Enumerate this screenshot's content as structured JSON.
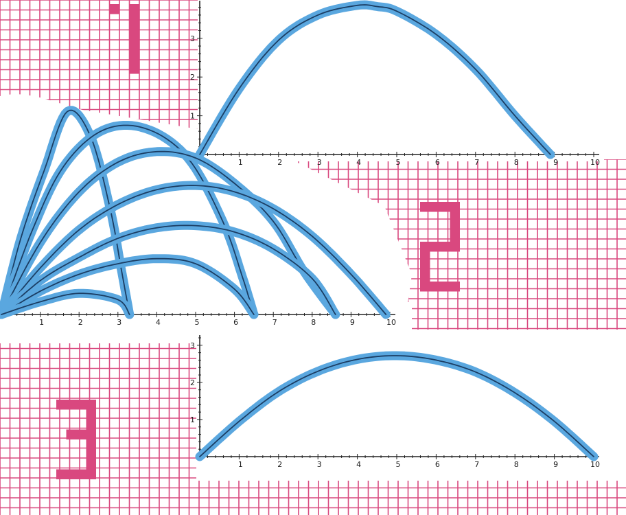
{
  "colors": {
    "grid": "#d9487f",
    "grid_light": "#ea6f9b",
    "panel_bg": "#ffffff",
    "curve_outline": "#5aa7df",
    "curve_core": "#1b3d63",
    "axis": "#222222"
  },
  "chart_data": [
    {
      "type": "line",
      "x_ticks": [
        "1",
        "2",
        "3",
        "4",
        "5",
        "6",
        "7",
        "8",
        "9",
        "10"
      ],
      "y_ticks": [
        "1",
        "2",
        "3"
      ],
      "xlim": [
        0,
        10
      ],
      "ylim": [
        0,
        3.9
      ],
      "series": [
        {
          "x": [
            0,
            1,
            2,
            3,
            4,
            4.5,
            5,
            6,
            7,
            8,
            8.9
          ],
          "y": [
            0,
            1.7,
            2.95,
            3.6,
            3.85,
            3.82,
            3.7,
            3.1,
            2.2,
            1.0,
            0
          ]
        }
      ]
    },
    {
      "type": "line",
      "x_ticks": [
        "1",
        "2",
        "3",
        "4",
        "5",
        "6",
        "7",
        "8",
        "9",
        "10"
      ],
      "y_ticks": [
        "1",
        "2",
        "3"
      ],
      "xlim": [
        0,
        10
      ],
      "ylim": [
        0,
        3.2
      ],
      "series": [
        {
          "x": [
            0,
            1,
            2,
            3,
            4,
            5,
            6,
            7,
            8,
            9,
            10
          ],
          "y": [
            0,
            0.95,
            1.75,
            2.3,
            2.62,
            2.72,
            2.6,
            2.28,
            1.72,
            0.95,
            0
          ]
        }
      ]
    },
    {
      "type": "line",
      "x_ticks": [
        "1",
        "2",
        "3",
        "4",
        "5",
        "6",
        "7",
        "8",
        "9",
        "10"
      ],
      "xlim": [
        0,
        10
      ],
      "ylim": [
        0,
        5
      ],
      "series": [
        {
          "x": [
            0,
            0.5,
            1.1,
            1.7,
            2.3,
            2.8,
            3.1,
            3.3
          ],
          "y": [
            0,
            1.8,
            3.4,
            4.8,
            4.2,
            2.5,
            1.0,
            0
          ]
        },
        {
          "x": [
            0,
            0.8,
            1.6,
            2.6,
            3.7,
            4.8,
            5.7,
            6.2,
            6.5
          ],
          "y": [
            0,
            2.0,
            3.5,
            4.35,
            4.4,
            3.7,
            2.2,
            0.9,
            0
          ]
        },
        {
          "x": [
            0,
            1,
            2,
            3,
            4,
            5,
            6,
            7,
            7.8,
            8.6
          ],
          "y": [
            0,
            1.7,
            2.9,
            3.6,
            3.85,
            3.7,
            3.1,
            2.2,
            1.0,
            0
          ]
        },
        {
          "x": [
            0,
            1,
            2,
            3,
            4,
            5,
            6,
            7,
            8,
            9,
            9.9
          ],
          "y": [
            0,
            1.1,
            2.0,
            2.6,
            2.95,
            3.05,
            2.9,
            2.5,
            1.85,
            0.95,
            0
          ]
        },
        {
          "x": [
            0,
            1,
            2,
            3,
            4,
            5,
            6,
            7,
            8,
            8.6
          ],
          "y": [
            0,
            0.8,
            1.35,
            1.8,
            2.05,
            2.1,
            1.95,
            1.55,
            0.85,
            0
          ]
        },
        {
          "x": [
            0,
            1,
            2,
            3,
            4,
            5,
            6,
            6.5
          ],
          "y": [
            0,
            0.55,
            0.95,
            1.2,
            1.32,
            1.2,
            0.6,
            0
          ]
        },
        {
          "x": [
            0,
            1,
            2,
            3,
            3.3
          ],
          "y": [
            0,
            0.3,
            0.5,
            0.35,
            0
          ]
        }
      ]
    }
  ]
}
